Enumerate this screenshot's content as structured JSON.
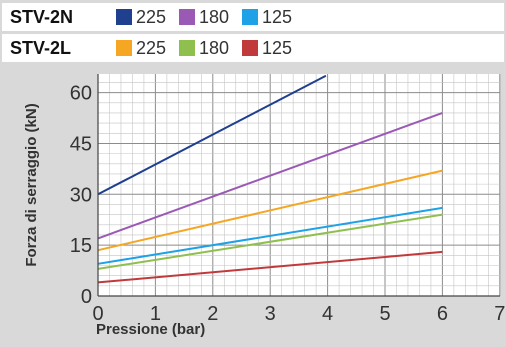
{
  "legend": {
    "rows": [
      {
        "model": "STV-2N",
        "entries": [
          {
            "label": "225",
            "color": "#1f3f8f"
          },
          {
            "label": "180",
            "color": "#9b59b6"
          },
          {
            "label": "125",
            "color": "#1ea1e6"
          }
        ]
      },
      {
        "model": "STV-2L",
        "entries": [
          {
            "label": "225",
            "color": "#f5a623"
          },
          {
            "label": "180",
            "color": "#8fbf4f"
          },
          {
            "label": "125",
            "color": "#c0393b"
          }
        ]
      }
    ]
  },
  "chart_data": {
    "type": "line",
    "xlabel": "Pressione (bar)",
    "ylabel": "Forza di serraggio (kN)",
    "xlim": [
      0,
      7
    ],
    "ylim": [
      0,
      65
    ],
    "x_ticks": [
      0,
      1,
      2,
      3,
      4,
      5,
      6,
      7
    ],
    "y_ticks": [
      0,
      15,
      30,
      45,
      60
    ],
    "grid": true,
    "series": [
      {
        "color": "#1f3f8f",
        "points": [
          [
            0,
            30
          ],
          [
            3.97,
            65
          ]
        ]
      },
      {
        "color": "#9b59b6",
        "points": [
          [
            0,
            17
          ],
          [
            6,
            54
          ]
        ]
      },
      {
        "color": "#f5a623",
        "points": [
          [
            0,
            13.5
          ],
          [
            6,
            37
          ]
        ]
      },
      {
        "color": "#1ea1e6",
        "points": [
          [
            0,
            9.5
          ],
          [
            6,
            26
          ]
        ]
      },
      {
        "color": "#8fbf4f",
        "points": [
          [
            0,
            8
          ],
          [
            6,
            24
          ]
        ]
      },
      {
        "color": "#c0393b",
        "points": [
          [
            0,
            4
          ],
          [
            6,
            13
          ]
        ]
      }
    ]
  }
}
